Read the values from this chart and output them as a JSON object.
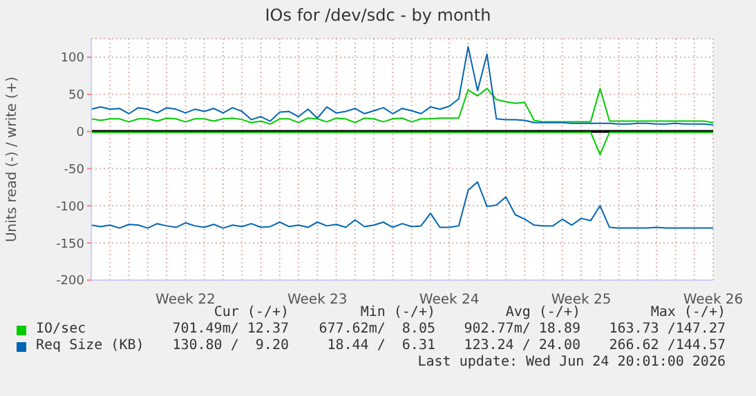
{
  "chart_data": {
    "type": "line",
    "title": "IOs for /dev/sdc - by month",
    "ylabel": "Units read (-) / write (+)",
    "categories": [
      null,
      null,
      null,
      null,
      null,
      null,
      null,
      null,
      null,
      null,
      "Week 22",
      null,
      null,
      null,
      null,
      null,
      null,
      null,
      null,
      null,
      null,
      null,
      null,
      null,
      "Week 23",
      null,
      null,
      null,
      null,
      null,
      null,
      null,
      null,
      null,
      null,
      null,
      null,
      null,
      "Week 24",
      null,
      null,
      null,
      null,
      null,
      null,
      null,
      null,
      null,
      null,
      null,
      null,
      null,
      "Week 25",
      null,
      null,
      null,
      null,
      null,
      null,
      null,
      null,
      null,
      null,
      null,
      null,
      null,
      "Week 26"
    ],
    "ylim": [
      -200,
      125
    ],
    "yticks": [
      -200,
      -150,
      -100,
      -50,
      0,
      50,
      100
    ],
    "grid": true,
    "legend": "bottom",
    "marker": "none",
    "line_style": "solid",
    "ref_lines": [
      {
        "axis": "y",
        "value": 0,
        "color": "#000000"
      }
    ],
    "series": [
      {
        "name": "IO/sec",
        "color": "#00cc00",
        "values": [
          17,
          15,
          17,
          17,
          13,
          17,
          17,
          14,
          18,
          17,
          13,
          17,
          17,
          14,
          17,
          18,
          16,
          12,
          14,
          10,
          17,
          17,
          12,
          18,
          17,
          13,
          18,
          17,
          12,
          18,
          17,
          13,
          17,
          18,
          13,
          17,
          17,
          18,
          18,
          18,
          56,
          48,
          58,
          43,
          40,
          38,
          39,
          15,
          13,
          13,
          13,
          13,
          13,
          13,
          58,
          14,
          14,
          14,
          14,
          14,
          14,
          14,
          14,
          14,
          14,
          14,
          12
        ]
      },
      {
        "color": "#00cc00",
        "values": [
          -1,
          -1,
          -1,
          -1,
          -1,
          -1,
          -1,
          -1,
          -1,
          -1,
          -1,
          -1,
          -1,
          -1,
          -1,
          -1,
          -1,
          -1,
          -1,
          -1,
          -1,
          -1,
          -1,
          -1,
          -1,
          -1,
          -1,
          -1,
          -1,
          -1,
          -1,
          -1,
          -1,
          -1,
          -1,
          -1,
          -1,
          -1,
          -1,
          -1,
          -1,
          -1,
          -1,
          -1,
          -1,
          -1,
          -1,
          -1,
          -1,
          -1,
          -1,
          -1,
          -1,
          -1,
          -31,
          -1,
          -1,
          -1,
          -1,
          -1,
          -1,
          -1,
          -1,
          -1,
          -1,
          -1,
          -1
        ]
      },
      {
        "name": "Req Size (KB)",
        "color": "#0066b3",
        "values": [
          30,
          33,
          30,
          31,
          24,
          32,
          30,
          25,
          32,
          30,
          25,
          30,
          27,
          31,
          25,
          32,
          27,
          16,
          20,
          14,
          26,
          27,
          20,
          30,
          18,
          33,
          25,
          27,
          31,
          24,
          28,
          32,
          24,
          31,
          28,
          24,
          33,
          30,
          34,
          44,
          114,
          55,
          104,
          17,
          16,
          16,
          15,
          12,
          12,
          12,
          12,
          11,
          11,
          11,
          11,
          11,
          10,
          10,
          11,
          11,
          10,
          10,
          11,
          10,
          10,
          10,
          9
        ]
      },
      {
        "color": "#0066b3",
        "values": [
          -126,
          -128,
          -126,
          -130,
          -125,
          -126,
          -130,
          -124,
          -127,
          -129,
          -123,
          -127,
          -129,
          -125,
          -130,
          -126,
          -128,
          -124,
          -129,
          -128,
          -122,
          -128,
          -126,
          -129,
          -122,
          -127,
          -125,
          -129,
          -119,
          -128,
          -126,
          -122,
          -129,
          -124,
          -128,
          -127,
          -110,
          -129,
          -129,
          -127,
          -79,
          -68,
          -101,
          -99,
          -88,
          -112,
          -118,
          -126,
          -127,
          -127,
          -118,
          -126,
          -117,
          -120,
          -100,
          -129,
          -130,
          -130,
          -130,
          -130,
          -129,
          -130,
          -130,
          -130,
          -130,
          -130,
          -130
        ]
      }
    ],
    "annotations": [
      "Cur (-/+)",
      "Min (-/+)",
      "Avg (-/+)",
      "Max (-/+)",
      "701.49m/ 12.37",
      "677.62m/  8.05",
      "902.77m/ 18.89",
      "163.73 /147.27",
      "130.80 /  9.20",
      "18.44 /  6.31",
      "123.24 / 24.00",
      "266.62 /144.57",
      "Last update: Wed Jun 24 20:01:00 2026"
    ]
  }
}
